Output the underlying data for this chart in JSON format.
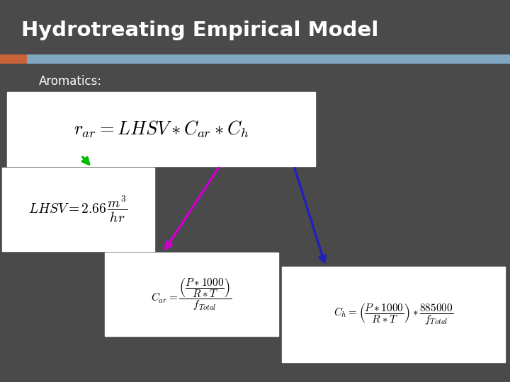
{
  "title": "Hydrotreating Empirical Model",
  "subtitle": "Aromatics:",
  "bg_color": "#4a4a4a",
  "title_color": "#ffffff",
  "subtitle_color": "#ffffff",
  "orange_bar": "#c8633a",
  "blue_bar": "#7fa8c0",
  "box_bg": "#ffffff",
  "arrow_green": "#00bb00",
  "arrow_magenta": "#cc00cc",
  "arrow_blue": "#2222bb"
}
